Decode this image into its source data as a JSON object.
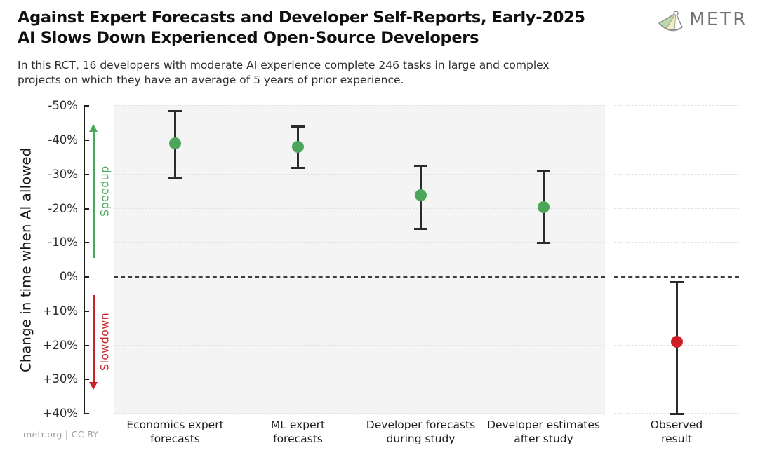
{
  "header": {
    "title_line1": "Against Expert Forecasts and Developer Self-Reports, Early-2025",
    "title_line2": "AI Slows Down Experienced Open-Source Developers",
    "subtitle_line1": "In this RCT, 16 developers with moderate AI experience complete 246 tasks in large and complex",
    "subtitle_line2": "projects on which they have an average of 5 years of prior experience.",
    "logo_text": "METR"
  },
  "footer": {
    "credit": "metr.org  |  CC-BY"
  },
  "chart_data": {
    "type": "scatter",
    "title": "Against Expert Forecasts and Developer Self-Reports, Early-2025 AI Slows Down Experienced Open-Source Developers",
    "subtitle": "In this RCT, 16 developers with moderate AI experience complete 246 tasks in large and complex projects on which they have an average of 5 years of prior experience.",
    "ylabel": "Change in time when AI allowed",
    "xlabel": "",
    "y_axis_inverted": true,
    "ylim_top_pct": -50,
    "ylim_bottom_pct": 40,
    "grid": "dashed-horizontal",
    "zero_line_pct": 0,
    "yticks": [
      {
        "value": -50,
        "label": "-50%"
      },
      {
        "value": -40,
        "label": "-40%"
      },
      {
        "value": -30,
        "label": "-30%"
      },
      {
        "value": -20,
        "label": "-20%"
      },
      {
        "value": -10,
        "label": "-10%"
      },
      {
        "value": 0,
        "label": "0%"
      },
      {
        "value": 10,
        "label": "+10%"
      },
      {
        "value": 20,
        "label": "+20%"
      },
      {
        "value": 30,
        "label": "+30%"
      },
      {
        "value": 40,
        "label": "+40%"
      }
    ],
    "annotations": {
      "speedup": {
        "label": "Speedup",
        "color": "#4aa85c",
        "direction": "up"
      },
      "slowdown": {
        "label": "Slowdown",
        "color": "#c9232b",
        "direction": "down"
      }
    },
    "points": [
      {
        "category": "Economics expert forecasts",
        "label_line1": "Economics expert",
        "label_line2": "forecasts",
        "value_pct": -39,
        "ci_low_pct": -48.5,
        "ci_high_pct": -29,
        "color": "#4ca659",
        "panel": "main"
      },
      {
        "category": "ML expert forecasts",
        "label_line1": "ML expert",
        "label_line2": "forecasts",
        "value_pct": -38,
        "ci_low_pct": -44,
        "ci_high_pct": -32,
        "color": "#4ca659",
        "panel": "main"
      },
      {
        "category": "Developer forecasts during study",
        "label_line1": "Developer forecasts",
        "label_line2": "during study",
        "value_pct": -24,
        "ci_low_pct": -32.5,
        "ci_high_pct": -14,
        "color": "#4ca659",
        "panel": "main"
      },
      {
        "category": "Developer estimates after study",
        "label_line1": "Developer estimates",
        "label_line2": "after study",
        "value_pct": -20.5,
        "ci_low_pct": -31,
        "ci_high_pct": -10,
        "color": "#4ca659",
        "panel": "main"
      },
      {
        "category": "Observed result",
        "label_line1": "Observed",
        "label_line2": "result",
        "value_pct": 19,
        "ci_low_pct": 1.5,
        "ci_high_pct": 40,
        "color": "#ce1f26",
        "panel": "right"
      }
    ],
    "colors": {
      "forecast_green": "#4ca659",
      "observed_red": "#ce1f26",
      "errorbar": "#2b2b2b",
      "panel_bg": "#f4f4f4",
      "gridline": "#e2e2e2",
      "zero_line": "#3d3d3d"
    },
    "legend": "none"
  }
}
